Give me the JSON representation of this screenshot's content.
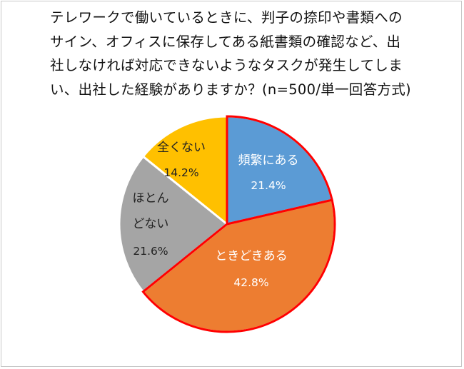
{
  "chart_data": {
    "type": "pie",
    "title_lines": [
      "テレワークで働いているときに、判子の捺印や書類への",
      "サイン、オフィスに保存してある紙書類の確認など、出",
      "社しなければ対応できないようなタスクが発生してしま",
      "い、出社した経験がありますか？(n=500/単一回答方式)"
    ],
    "slices": [
      {
        "label": "頻繁にある",
        "value": 21.4,
        "value_label": "21.4%",
        "color": "#5b9bd5",
        "text_color": "#ffffff",
        "highlight": true
      },
      {
        "label": "ときどきある",
        "value": 42.8,
        "value_label": "42.8%",
        "color": "#ed7d31",
        "text_color": "#ffffff",
        "highlight": true
      },
      {
        "label": "ほとんどない",
        "label_lines": [
          "ほとん",
          "どない"
        ],
        "value": 21.6,
        "value_label": "21.6%",
        "color": "#a5a5a5",
        "text_color": "#222222",
        "highlight": false
      },
      {
        "label": "全くない",
        "value": 14.2,
        "value_label": "14.2%",
        "color": "#ffc000",
        "text_color": "#222222",
        "highlight": false
      }
    ],
    "start_angle": "12 o'clock",
    "direction": "clockwise",
    "highlight_color": "#ff0000"
  }
}
